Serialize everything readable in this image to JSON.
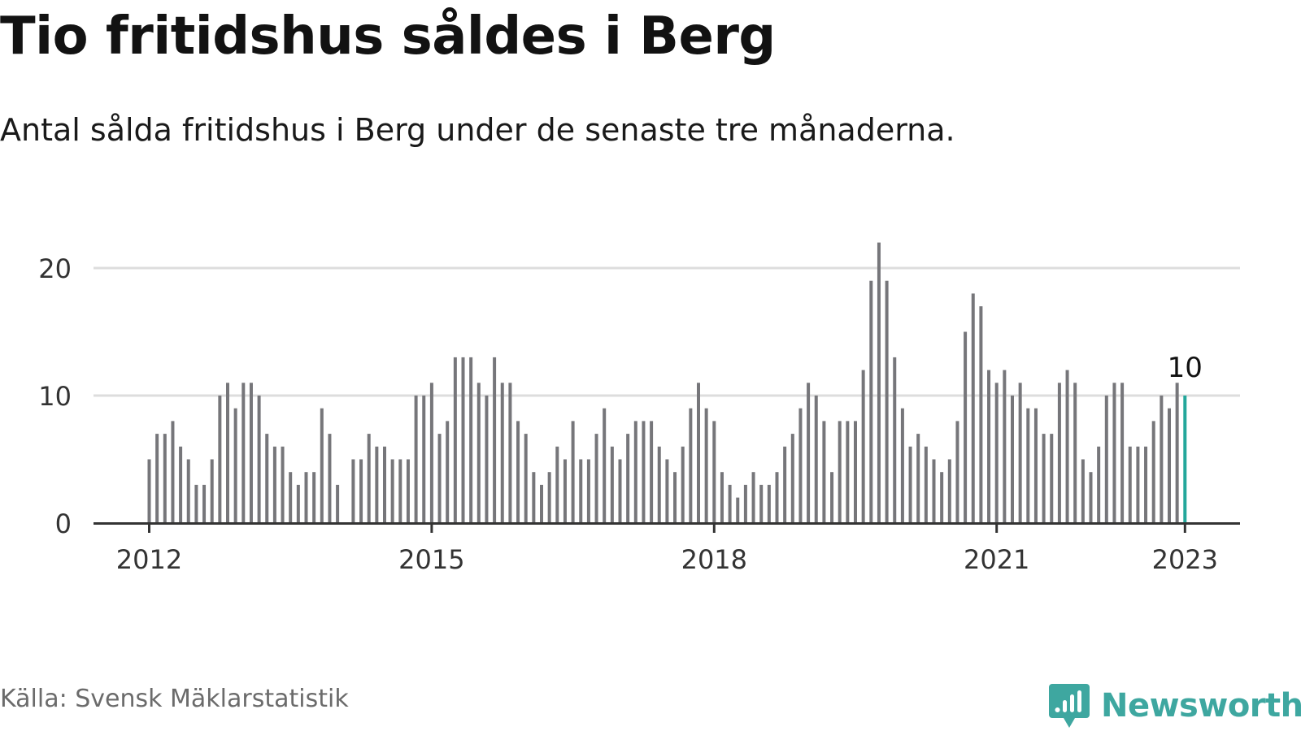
{
  "title": "Tio fritidshus såldes i Berg",
  "subtitle": "Antal sålda fritidshus i Berg under de senaste tre månaderna.",
  "source": "Källa: Svensk Mäklarstatistik",
  "logo_text": "Newsworthy",
  "colors": {
    "bar": "#76767a",
    "highlight": "#23a79b",
    "grid": "#dddddd",
    "axis": "#333333",
    "logo": "#3ea7a0"
  },
  "chart_data": {
    "type": "bar",
    "x_start": "2012-01",
    "x_end": "2023-01",
    "values": [
      5,
      7,
      7,
      8,
      6,
      5,
      3,
      3,
      5,
      10,
      11,
      9,
      11,
      11,
      10,
      7,
      6,
      6,
      4,
      3,
      4,
      4,
      9,
      7,
      3,
      0,
      5,
      5,
      7,
      6,
      6,
      5,
      5,
      5,
      10,
      10,
      11,
      7,
      8,
      13,
      13,
      13,
      11,
      10,
      13,
      11,
      11,
      8,
      7,
      4,
      3,
      4,
      6,
      5,
      8,
      5,
      5,
      7,
      9,
      6,
      5,
      7,
      8,
      8,
      8,
      6,
      5,
      4,
      6,
      9,
      11,
      9,
      8,
      4,
      3,
      2,
      3,
      4,
      3,
      3,
      4,
      6,
      7,
      9,
      11,
      10,
      8,
      4,
      8,
      8,
      8,
      12,
      19,
      22,
      19,
      13,
      9,
      6,
      7,
      6,
      5,
      4,
      5,
      8,
      15,
      18,
      17,
      12,
      11,
      12,
      10,
      11,
      9,
      9,
      7,
      7,
      11,
      12,
      11,
      5,
      4,
      6,
      10,
      11,
      11,
      6,
      6,
      6,
      8,
      10,
      9,
      11,
      10
    ],
    "highlight_index": 132,
    "highlight_label": "10",
    "y_ticks": [
      0,
      10,
      20
    ],
    "ylim": [
      0,
      23
    ],
    "x_ticks": [
      {
        "label": "2012",
        "index": 0
      },
      {
        "label": "2015",
        "index": 36
      },
      {
        "label": "2018",
        "index": 72
      },
      {
        "label": "2021",
        "index": 108
      },
      {
        "label": "2023",
        "index": 132
      }
    ],
    "grid": true
  }
}
